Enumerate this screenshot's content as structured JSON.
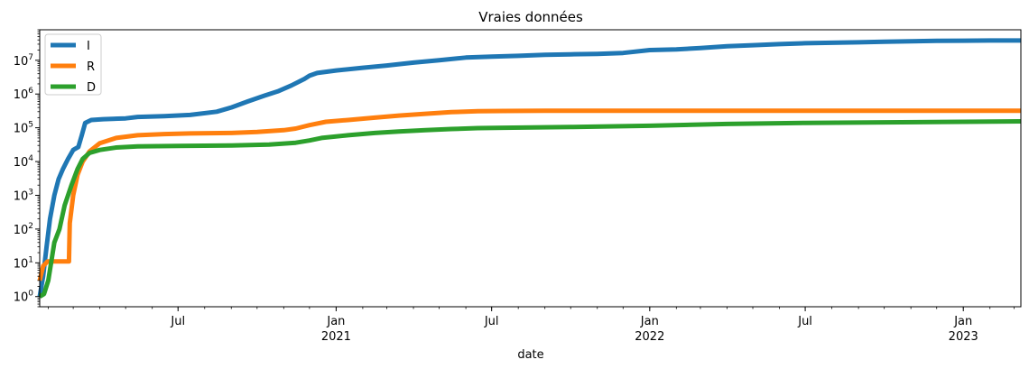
{
  "chart_data": {
    "type": "line",
    "title": "Vraies données",
    "xlabel": "date",
    "ylabel": "",
    "yscale": "log",
    "ylim": [
      0.5,
      80000000
    ],
    "xlim": [
      "2020-01-22",
      "2023-03-09"
    ],
    "grid": false,
    "legend_position": "top-left",
    "y_ticks": [
      {
        "value": 1,
        "base": "10",
        "exp": "0"
      },
      {
        "value": 10,
        "base": "10",
        "exp": "1"
      },
      {
        "value": 100,
        "base": "10",
        "exp": "2"
      },
      {
        "value": 1000,
        "base": "10",
        "exp": "3"
      },
      {
        "value": 10000,
        "base": "10",
        "exp": "4"
      },
      {
        "value": 100000,
        "base": "10",
        "exp": "5"
      },
      {
        "value": 1000000,
        "base": "10",
        "exp": "6"
      },
      {
        "value": 10000000,
        "base": "10",
        "exp": "7"
      }
    ],
    "x_major_ticks": [
      {
        "date": "2020-07-01",
        "label": "Jul",
        "year": ""
      },
      {
        "date": "2021-01-01",
        "label": "Jan",
        "year": "2021"
      },
      {
        "date": "2021-07-01",
        "label": "Jul",
        "year": ""
      },
      {
        "date": "2022-01-01",
        "label": "Jan",
        "year": "2022"
      },
      {
        "date": "2022-07-01",
        "label": "Jul",
        "year": ""
      },
      {
        "date": "2023-01-01",
        "label": "Jan",
        "year": "2023"
      }
    ],
    "series": [
      {
        "name": "I",
        "color": "#1f77b4",
        "points": [
          [
            "2020-01-22",
            1
          ],
          [
            "2020-01-26",
            4
          ],
          [
            "2020-01-30",
            30
          ],
          [
            "2020-02-03",
            200
          ],
          [
            "2020-02-08",
            1000
          ],
          [
            "2020-02-13",
            3000
          ],
          [
            "2020-02-18",
            6000
          ],
          [
            "2020-02-24",
            12000
          ],
          [
            "2020-03-01",
            22000
          ],
          [
            "2020-03-07",
            27000
          ],
          [
            "2020-03-11",
            60000
          ],
          [
            "2020-03-15",
            140000
          ],
          [
            "2020-03-22",
            170000
          ],
          [
            "2020-04-05",
            180000
          ],
          [
            "2020-05-01",
            190000
          ],
          [
            "2020-05-15",
            210000
          ],
          [
            "2020-06-15",
            220000
          ],
          [
            "2020-07-15",
            240000
          ],
          [
            "2020-08-15",
            300000
          ],
          [
            "2020-09-01",
            400000
          ],
          [
            "2020-09-20",
            600000
          ],
          [
            "2020-10-10",
            900000
          ],
          [
            "2020-10-25",
            1200000
          ],
          [
            "2020-11-10",
            1800000
          ],
          [
            "2020-11-25",
            2800000
          ],
          [
            "2020-12-01",
            3500000
          ],
          [
            "2020-12-10",
            4200000
          ],
          [
            "2021-01-01",
            5000000
          ],
          [
            "2021-02-01",
            6000000
          ],
          [
            "2021-03-01",
            7000000
          ],
          [
            "2021-04-01",
            8500000
          ],
          [
            "2021-05-01",
            10000000
          ],
          [
            "2021-06-01",
            12000000
          ],
          [
            "2021-07-01",
            12800000
          ],
          [
            "2021-08-01",
            13500000
          ],
          [
            "2021-09-01",
            14500000
          ],
          [
            "2021-10-01",
            15000000
          ],
          [
            "2021-11-01",
            15500000
          ],
          [
            "2021-12-01",
            16500000
          ],
          [
            "2022-01-01",
            20000000
          ],
          [
            "2022-02-01",
            21000000
          ],
          [
            "2022-03-01",
            23000000
          ],
          [
            "2022-04-01",
            26000000
          ],
          [
            "2022-05-01",
            28000000
          ],
          [
            "2022-06-01",
            30000000
          ],
          [
            "2022-07-01",
            32000000
          ],
          [
            "2022-08-01",
            33000000
          ],
          [
            "2022-09-01",
            34000000
          ],
          [
            "2022-10-01",
            35500000
          ],
          [
            "2022-11-01",
            36500000
          ],
          [
            "2022-12-01",
            37500000
          ],
          [
            "2023-01-01",
            38000000
          ],
          [
            "2023-02-01",
            38500000
          ],
          [
            "2023-03-09",
            38500000
          ]
        ]
      },
      {
        "name": "R",
        "color": "#ff7f0e",
        "points": [
          [
            "2020-01-22",
            3
          ],
          [
            "2020-01-26",
            8
          ],
          [
            "2020-01-31",
            11
          ],
          [
            "2020-02-25",
            11
          ],
          [
            "2020-02-26",
            150
          ],
          [
            "2020-03-01",
            1000
          ],
          [
            "2020-03-06",
            4000
          ],
          [
            "2020-03-12",
            10000
          ],
          [
            "2020-03-20",
            20000
          ],
          [
            "2020-04-01",
            35000
          ],
          [
            "2020-04-20",
            50000
          ],
          [
            "2020-05-15",
            60000
          ],
          [
            "2020-06-15",
            65000
          ],
          [
            "2020-07-15",
            68000
          ],
          [
            "2020-09-01",
            70000
          ],
          [
            "2020-10-01",
            75000
          ],
          [
            "2020-11-01",
            85000
          ],
          [
            "2020-11-15",
            95000
          ],
          [
            "2020-12-01",
            120000
          ],
          [
            "2020-12-20",
            150000
          ],
          [
            "2021-01-15",
            170000
          ],
          [
            "2021-02-15",
            200000
          ],
          [
            "2021-03-15",
            230000
          ],
          [
            "2021-04-15",
            260000
          ],
          [
            "2021-05-15",
            290000
          ],
          [
            "2021-06-15",
            310000
          ],
          [
            "2021-07-15",
            315000
          ],
          [
            "2021-09-01",
            320000
          ],
          [
            "2022-01-01",
            320000
          ],
          [
            "2023-03-09",
            320000
          ]
        ]
      },
      {
        "name": "D",
        "color": "#2ca02c",
        "points": [
          [
            "2020-01-22",
            1
          ],
          [
            "2020-01-27",
            1.2
          ],
          [
            "2020-02-01",
            3
          ],
          [
            "2020-02-08",
            40
          ],
          [
            "2020-02-14",
            100
          ],
          [
            "2020-02-20",
            500
          ],
          [
            "2020-02-28",
            2000
          ],
          [
            "2020-03-06",
            6000
          ],
          [
            "2020-03-12",
            12000
          ],
          [
            "2020-03-20",
            18000
          ],
          [
            "2020-04-01",
            22000
          ],
          [
            "2020-04-20",
            26000
          ],
          [
            "2020-05-15",
            28000
          ],
          [
            "2020-07-01",
            29000
          ],
          [
            "2020-09-01",
            30000
          ],
          [
            "2020-10-15",
            32000
          ],
          [
            "2020-11-15",
            36000
          ],
          [
            "2020-12-01",
            42000
          ],
          [
            "2020-12-15",
            50000
          ],
          [
            "2021-01-15",
            60000
          ],
          [
            "2021-02-15",
            70000
          ],
          [
            "2021-03-15",
            78000
          ],
          [
            "2021-04-15",
            85000
          ],
          [
            "2021-05-15",
            92000
          ],
          [
            "2021-06-15",
            98000
          ],
          [
            "2021-07-15",
            100000
          ],
          [
            "2021-10-01",
            105000
          ],
          [
            "2022-01-01",
            115000
          ],
          [
            "2022-04-01",
            130000
          ],
          [
            "2022-07-01",
            140000
          ],
          [
            "2022-10-01",
            145000
          ],
          [
            "2023-01-01",
            150000
          ],
          [
            "2023-03-09",
            155000
          ]
        ]
      }
    ]
  }
}
